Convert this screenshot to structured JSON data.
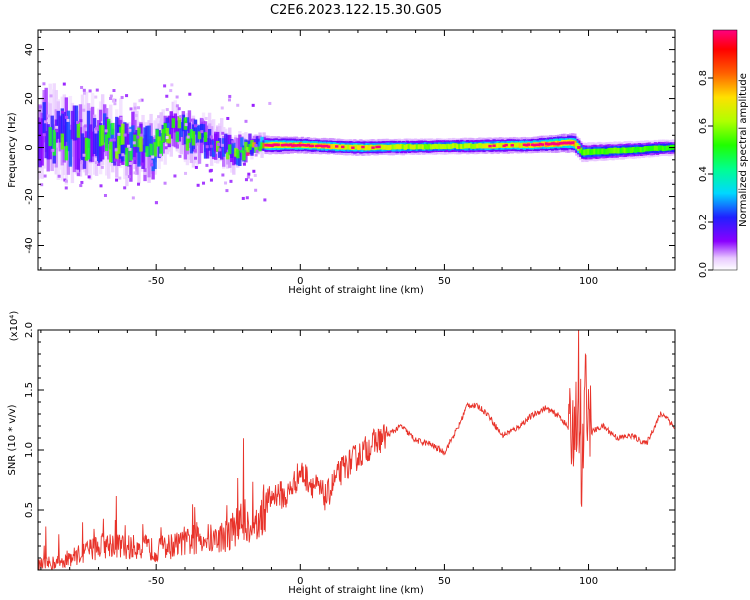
{
  "title": "C2E6.2023.122.15.30.G05",
  "chart_data": [
    {
      "type": "heatmap",
      "xlabel": "Height of straight line (km)",
      "ylabel": "Frequency (Hz)",
      "xlim": [
        -91,
        130
      ],
      "ylim": [
        -50,
        48
      ],
      "xticks": [
        -50,
        0,
        50,
        100
      ],
      "yticks": [
        -40,
        -20,
        0,
        20,
        40
      ],
      "ytick_labels": [
        "-40",
        "-20",
        "0",
        "20",
        "40"
      ],
      "colorbar": {
        "label": "Normalized spectral amplitude",
        "range": [
          0,
          1
        ],
        "ticks": [
          0.0,
          0.2,
          0.4,
          0.6,
          0.8
        ],
        "tick_labels": [
          "0.0",
          "0.2",
          "0.4",
          "0.6",
          "0.8"
        ]
      },
      "ridge": [
        {
          "x": -88,
          "f": 6,
          "w": 12,
          "a": 0.45
        },
        {
          "x": -80,
          "f": 4,
          "w": 11,
          "a": 0.5
        },
        {
          "x": -70,
          "f": 3,
          "w": 10,
          "a": 0.5
        },
        {
          "x": -60,
          "f": 1,
          "w": 9,
          "a": 0.55
        },
        {
          "x": -50,
          "f": 0,
          "w": 8,
          "a": 0.5
        },
        {
          "x": -45,
          "f": 8,
          "w": 6,
          "a": 0.55
        },
        {
          "x": -38,
          "f": 5,
          "w": 7,
          "a": 0.5
        },
        {
          "x": -30,
          "f": 2,
          "w": 6,
          "a": 0.5
        },
        {
          "x": -22,
          "f": -2,
          "w": 5,
          "a": 0.55
        },
        {
          "x": -15,
          "f": 1,
          "w": 3,
          "a": 0.75
        },
        {
          "x": 0,
          "f": 1,
          "w": 2.5,
          "a": 0.85
        },
        {
          "x": 20,
          "f": 0,
          "w": 2.5,
          "a": 0.75
        },
        {
          "x": 50,
          "f": 0.5,
          "w": 2.5,
          "a": 0.65
        },
        {
          "x": 80,
          "f": 1,
          "w": 2.5,
          "a": 0.8
        },
        {
          "x": 95,
          "f": 2,
          "w": 3,
          "a": 0.85
        },
        {
          "x": 98,
          "f": -2,
          "w": 3,
          "a": 0.6
        },
        {
          "x": 130,
          "f": 0,
          "w": 2.5,
          "a": 0.55
        }
      ]
    },
    {
      "type": "line",
      "xlabel": "Height of straight line (km)",
      "ylabel": "SNR (10 * v/v)",
      "yscale_label": "(x10⁴)",
      "xlim": [
        -91,
        130
      ],
      "ylim": [
        0,
        2.0
      ],
      "xticks": [
        -50,
        0,
        50,
        100
      ],
      "yticks": [
        0.5,
        1.0,
        1.5,
        2.0
      ],
      "ytick_labels": [
        "0.5",
        "1.0",
        "1.5",
        "2.0"
      ],
      "color": "#e8332a",
      "x": [
        -91,
        -85,
        -80,
        -75,
        -70,
        -65,
        -60,
        -55,
        -50,
        -45,
        -40,
        -35,
        -30,
        -25,
        -20,
        -15,
        -12,
        -8,
        -5,
        0,
        5,
        9,
        12,
        15,
        20,
        25,
        30,
        35,
        40,
        45,
        50,
        55,
        58,
        62,
        65,
        70,
        75,
        80,
        85,
        90,
        94,
        96,
        97.5,
        99,
        101,
        105,
        110,
        115,
        120,
        125,
        127,
        130
      ],
      "y": [
        0.04,
        0.06,
        0.1,
        0.15,
        0.2,
        0.22,
        0.18,
        0.2,
        0.16,
        0.2,
        0.22,
        0.28,
        0.25,
        0.3,
        0.42,
        0.35,
        0.55,
        0.65,
        0.6,
        0.82,
        0.7,
        0.6,
        0.75,
        0.85,
        0.95,
        1.05,
        1.12,
        1.2,
        1.08,
        1.05,
        0.98,
        1.2,
        1.38,
        1.36,
        1.3,
        1.12,
        1.18,
        1.28,
        1.35,
        1.28,
        1.15,
        1.3,
        0.6,
        1.55,
        1.15,
        1.2,
        1.1,
        1.12,
        1.05,
        1.3,
        1.28,
        1.18
      ]
    }
  ]
}
